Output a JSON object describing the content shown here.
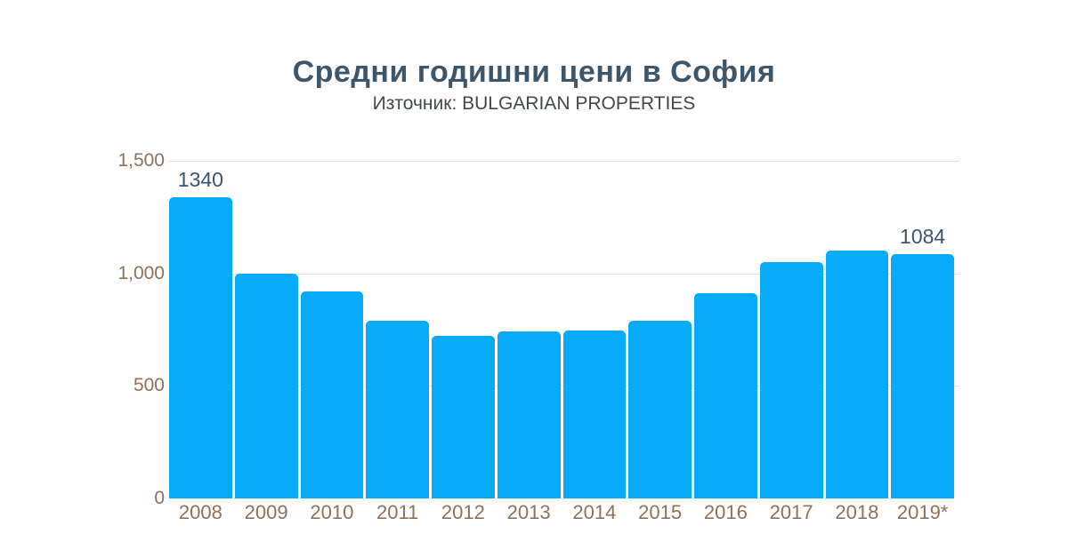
{
  "header": {
    "title": "Средни годишни цени в София",
    "subtitle": "Източник: BULGARIAN PROPERTIES"
  },
  "colors": {
    "background": "#ffffff",
    "bar": "#07abf7",
    "title": "#3c566b",
    "subtitle": "#42484e",
    "axis_label": "#8e7157",
    "value_label": "#3d5468",
    "gridline": "#e2e2e2"
  },
  "chart_data": {
    "type": "bar",
    "title": "Средни годишни цени в София",
    "subtitle": "Източник: BULGARIAN PROPERTIES",
    "categories": [
      "2008",
      "2009",
      "2010",
      "2011",
      "2012",
      "2013",
      "2014",
      "2015",
      "2016",
      "2017",
      "2018",
      "2019*"
    ],
    "values": [
      1340,
      1000,
      920,
      790,
      724,
      742,
      748,
      790,
      910,
      1050,
      1100,
      1084
    ],
    "data_labels": [
      {
        "category": "2008",
        "text": "1340"
      },
      {
        "category": "2019*",
        "text": "1084"
      }
    ],
    "xlabel": "",
    "ylabel": "",
    "ylim": [
      0,
      1500
    ],
    "yticks": [
      {
        "value": 0,
        "label": "0",
        "gridline": false
      },
      {
        "value": 500,
        "label": "500",
        "gridline": true
      },
      {
        "value": 1000,
        "label": "1,000",
        "gridline": true
      },
      {
        "value": 1500,
        "label": "1,500",
        "gridline": true
      }
    ],
    "grid": "horizontal",
    "legend": "none"
  }
}
